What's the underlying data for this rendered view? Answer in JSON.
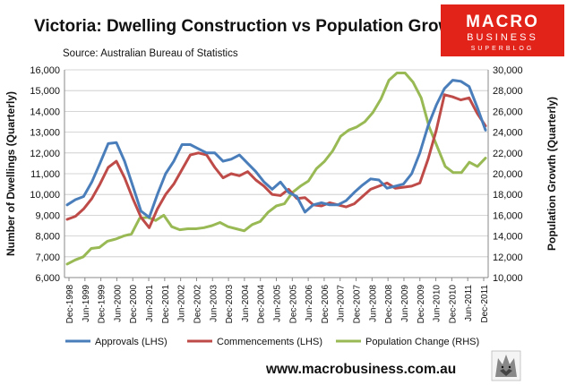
{
  "brand": {
    "line1": "MACRO",
    "line2": "BUSINESS",
    "line3": "SUPERBLOG",
    "website": "www.macrobusiness.com.au",
    "logo_color": "#e2231a"
  },
  "chart_data": {
    "type": "line",
    "title": "Victoria: Dwelling Construction vs Population Growth",
    "subtitle": "Source: Australian Bureau of Statistics",
    "ylabel_left": "Number of Dwellings (Quarterly)",
    "ylabel_right": "Population Growth (Quarterly)",
    "ylim_left": [
      6000,
      16000
    ],
    "ylim_right": [
      10000,
      30000
    ],
    "yticks_left": [
      "6,000",
      "7,000",
      "8,000",
      "9,000",
      "10,000",
      "11,000",
      "12,000",
      "13,000",
      "14,000",
      "15,000",
      "16,000"
    ],
    "yticks_right": [
      "10,000",
      "12,000",
      "14,000",
      "16,000",
      "18,000",
      "20,000",
      "22,000",
      "24,000",
      "26,000",
      "28,000",
      "30,000"
    ],
    "xtick_labels": [
      "Dec-1998",
      "Jun-1999",
      "Dec-1999",
      "Jun-2000",
      "Dec-2000",
      "Jun-2001",
      "Dec-2001",
      "Jun-2002",
      "Dec-2002",
      "Jun-2003",
      "Dec-2003",
      "Jun-2004",
      "Dec-2004",
      "Jun-2005",
      "Dec-2005",
      "Jun-2006",
      "Dec-2006",
      "Jun-2007",
      "Dec-2007",
      "Jun-2008",
      "Dec-2008",
      "Jun-2009",
      "Dec-2009",
      "Jun-2010",
      "Dec-2010",
      "Jun-2011",
      "Dec-2011"
    ],
    "series": [
      {
        "name": "Approvals (LHS)",
        "axis": "left",
        "color": "#4a7ebb",
        "values": [
          9500,
          9750,
          9900,
          10600,
          11500,
          12450,
          12500,
          11600,
          10400,
          9200,
          8900,
          10000,
          11000,
          11600,
          12400,
          12400,
          12200,
          12000,
          12000,
          11600,
          11700,
          11900,
          11500,
          11100,
          10600,
          10250,
          10600,
          10100,
          9900,
          9150,
          9500,
          9600,
          9500,
          9500,
          9700,
          10100,
          10450,
          10750,
          10700,
          10300,
          10400,
          10500,
          11000,
          12000,
          13300,
          14300,
          15100,
          15500,
          15450,
          15200,
          14200,
          13100
        ]
      },
      {
        "name": "Commencements (LHS)",
        "axis": "left",
        "color": "#be4b48",
        "values": [
          8800,
          8950,
          9300,
          9800,
          10500,
          11300,
          11600,
          10800,
          9800,
          8900,
          8400,
          9300,
          10000,
          10500,
          11200,
          11900,
          12000,
          11900,
          11300,
          10800,
          11000,
          10900,
          11100,
          10700,
          10400,
          10000,
          9950,
          10250,
          9800,
          9850,
          9500,
          9450,
          9600,
          9500,
          9400,
          9550,
          9900,
          10250,
          10400,
          10550,
          10300,
          10350,
          10400,
          10550,
          11700,
          13100,
          14800,
          14700,
          14550,
          14650,
          13900,
          13300
        ]
      },
      {
        "name": "Population Change (RHS)",
        "axis": "right",
        "color": "#98b954",
        "values": [
          11300,
          11700,
          12000,
          12800,
          12900,
          13500,
          13700,
          14000,
          14200,
          15700,
          15800,
          15500,
          16000,
          14900,
          14600,
          14700,
          14700,
          14800,
          15000,
          15300,
          14900,
          14700,
          14500,
          15100,
          15400,
          16300,
          16900,
          17100,
          18200,
          18800,
          19300,
          20500,
          21200,
          22200,
          23600,
          24200,
          24500,
          25000,
          25900,
          27200,
          29000,
          29700,
          29700,
          28800,
          27300,
          24500,
          22600,
          20700,
          20100,
          20100,
          21100,
          20700,
          21500
        ]
      }
    ]
  }
}
